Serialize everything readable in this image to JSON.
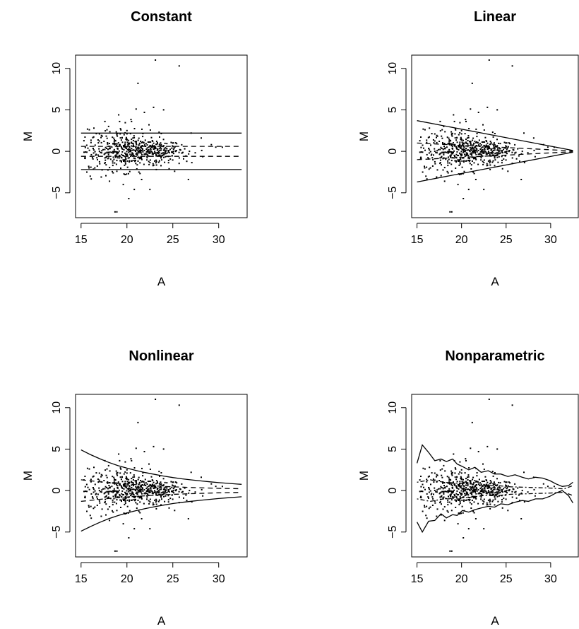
{
  "chart_data": [
    {
      "type": "scatter",
      "title": "Constant",
      "xlabel": "A",
      "ylabel": "M",
      "xlim": [
        14.4,
        33.1
      ],
      "ylim": [
        -8.0,
        11.6
      ],
      "xticks": [
        "15",
        "20",
        "25",
        "30"
      ],
      "yticks": [
        "-5",
        "0",
        "5",
        "10"
      ],
      "series": [
        {
          "style": "points",
          "points_from": "scatter_points"
        },
        {
          "style": "solid",
          "x": [
            15.0,
            32.5
          ],
          "y": [
            2.2,
            2.2
          ]
        },
        {
          "style": "solid",
          "x": [
            15.0,
            32.5
          ],
          "y": [
            -2.2,
            -2.2
          ]
        },
        {
          "style": "dashed",
          "x": [
            15.0,
            32.5
          ],
          "y": [
            0.6,
            0.6
          ]
        },
        {
          "style": "dashed",
          "x": [
            15.0,
            32.5
          ],
          "y": [
            -0.6,
            -0.6
          ]
        }
      ]
    },
    {
      "type": "scatter",
      "title": "Linear",
      "xlabel": "A",
      "ylabel": "M",
      "xlim": [
        14.4,
        33.1
      ],
      "ylim": [
        -8.0,
        11.6
      ],
      "xticks": [
        "15",
        "20",
        "25",
        "30"
      ],
      "yticks": [
        "-5",
        "0",
        "5",
        "10"
      ],
      "series": [
        {
          "style": "points",
          "points_from": "scatter_points"
        },
        {
          "style": "solid",
          "x": [
            15.0,
            32.5
          ],
          "y": [
            3.7,
            0.1
          ]
        },
        {
          "style": "solid",
          "x": [
            15.0,
            32.5
          ],
          "y": [
            -3.7,
            -0.1
          ]
        },
        {
          "style": "dashed",
          "x": [
            15.0,
            32.5
          ],
          "y": [
            1.0,
            0.05
          ]
        },
        {
          "style": "dashed",
          "x": [
            15.0,
            32.5
          ],
          "y": [
            -1.0,
            -0.05
          ]
        }
      ]
    },
    {
      "type": "scatter",
      "title": "Nonlinear",
      "xlabel": "A",
      "ylabel": "M",
      "xlim": [
        14.4,
        33.1
      ],
      "ylim": [
        -8.0,
        11.6
      ],
      "xticks": [
        "15",
        "20",
        "25",
        "30"
      ],
      "yticks": [
        "-5",
        "0",
        "5",
        "10"
      ],
      "series": [
        {
          "style": "points",
          "points_from": "scatter_points"
        },
        {
          "style": "solid",
          "x": [
            15,
            16,
            17,
            18,
            19,
            20,
            21,
            22,
            23,
            24,
            25,
            26,
            27,
            28,
            29,
            30,
            31,
            32,
            32.5
          ],
          "y": [
            4.9,
            4.35,
            3.85,
            3.4,
            3.02,
            2.7,
            2.42,
            2.17,
            1.95,
            1.75,
            1.57,
            1.42,
            1.29,
            1.17,
            1.06,
            0.96,
            0.87,
            0.79,
            0.75
          ]
        },
        {
          "style": "solid",
          "x": [
            15,
            16,
            17,
            18,
            19,
            20,
            21,
            22,
            23,
            24,
            25,
            26,
            27,
            28,
            29,
            30,
            31,
            32,
            32.5
          ],
          "y": [
            -4.9,
            -4.35,
            -3.85,
            -3.4,
            -3.02,
            -2.7,
            -2.42,
            -2.17,
            -1.95,
            -1.75,
            -1.57,
            -1.42,
            -1.29,
            -1.17,
            -1.06,
            -0.96,
            -0.87,
            -0.79,
            -0.75
          ]
        },
        {
          "style": "dashed",
          "x": [
            15,
            18,
            21,
            24,
            27,
            30,
            32.5
          ],
          "y": [
            1.3,
            0.95,
            0.7,
            0.5,
            0.37,
            0.27,
            0.22
          ]
        },
        {
          "style": "dashed",
          "x": [
            15,
            18,
            21,
            24,
            27,
            30,
            32.5
          ],
          "y": [
            -1.3,
            -0.95,
            -0.7,
            -0.5,
            -0.37,
            -0.27,
            -0.22
          ]
        }
      ]
    },
    {
      "type": "scatter",
      "title": "Nonparametric",
      "xlabel": "A",
      "ylabel": "M",
      "xlim": [
        14.4,
        33.1
      ],
      "ylim": [
        -8.0,
        11.6
      ],
      "xticks": [
        "15",
        "20",
        "25",
        "30"
      ],
      "yticks": [
        "-5",
        "0",
        "5",
        "10"
      ],
      "series": [
        {
          "style": "points",
          "points_from": "scatter_points"
        },
        {
          "style": "solid",
          "x": [
            15.0,
            15.6,
            16.3,
            17.0,
            17.7,
            18.3,
            19.0,
            19.5,
            20.1,
            20.8,
            21.5,
            22.2,
            23.0,
            23.7,
            24.4,
            25.2,
            26.0,
            26.8,
            27.5,
            28.3,
            29.1,
            29.9,
            30.6,
            31.3,
            32.0,
            32.5
          ],
          "y": [
            3.3,
            5.5,
            4.6,
            3.6,
            3.8,
            3.5,
            3.8,
            3.2,
            2.9,
            2.5,
            2.8,
            2.2,
            2.4,
            2.0,
            2.0,
            1.7,
            1.9,
            1.6,
            1.4,
            1.6,
            1.5,
            1.2,
            0.8,
            0.5,
            0.6,
            1.0
          ]
        },
        {
          "style": "solid",
          "x": [
            15.0,
            15.6,
            16.3,
            17.0,
            17.7,
            18.3,
            19.0,
            19.5,
            20.1,
            20.8,
            21.5,
            22.2,
            23.0,
            23.7,
            24.4,
            25.2,
            26.0,
            26.8,
            27.5,
            28.3,
            29.1,
            29.9,
            30.6,
            31.3,
            32.0,
            32.5
          ],
          "y": [
            -3.8,
            -5.0,
            -3.7,
            -3.6,
            -2.8,
            -3.3,
            -2.9,
            -3.0,
            -2.4,
            -2.6,
            -2.3,
            -2.1,
            -1.9,
            -2.0,
            -1.6,
            -1.7,
            -1.4,
            -1.2,
            -1.3,
            -1.0,
            -1.0,
            -0.7,
            -0.3,
            0.0,
            -0.6,
            -1.5
          ]
        },
        {
          "style": "dotdash",
          "x": [
            15.0,
            16.5,
            18.0,
            19.5,
            21.0,
            22.5,
            24.0,
            25.5,
            27.0,
            28.5,
            30.0,
            31.5,
            32.5
          ],
          "y": [
            1.0,
            1.3,
            1.0,
            0.9,
            0.8,
            0.6,
            0.6,
            0.45,
            0.4,
            0.35,
            0.3,
            0.2,
            0.6
          ]
        },
        {
          "style": "dotdash",
          "x": [
            15.0,
            16.5,
            18.0,
            19.5,
            21.0,
            22.5,
            24.0,
            25.5,
            27.0,
            28.5,
            30.0,
            31.5,
            32.5
          ],
          "y": [
            -1.0,
            -1.3,
            -1.0,
            -0.9,
            -0.8,
            -0.6,
            -0.6,
            -0.45,
            -0.4,
            -0.35,
            -0.3,
            -0.2,
            -0.6
          ]
        }
      ]
    }
  ],
  "scatter_points": [
    [
      23.1,
      11.0
    ],
    [
      25.7,
      10.3
    ],
    [
      21.2,
      8.2
    ],
    [
      18.7,
      -7.3
    ],
    [
      18.9,
      -7.3
    ],
    [
      20.2,
      -5.7
    ],
    [
      22.9,
      5.3
    ],
    [
      24.0,
      5.0
    ],
    [
      21.0,
      5.1
    ],
    [
      19.1,
      4.4
    ],
    [
      17.6,
      3.6
    ],
    [
      20.5,
      3.6
    ],
    [
      18.0,
      3.0
    ],
    [
      16.4,
      2.8
    ],
    [
      15.9,
      2.6
    ],
    [
      22.4,
      3.2
    ],
    [
      19.6,
      -4.0
    ],
    [
      18.1,
      -3.6
    ],
    [
      20.8,
      -4.6
    ],
    [
      22.5,
      -4.6
    ],
    [
      26.7,
      -3.4
    ],
    [
      17.2,
      -3.1
    ],
    [
      16.0,
      -3.0
    ],
    [
      21.6,
      -3.4
    ],
    [
      24.6,
      -2.1
    ],
    [
      25.2,
      -2.4
    ],
    [
      28.1,
      1.6
    ],
    [
      27.0,
      2.2
    ],
    [
      29.2,
      0.8
    ],
    [
      30.4,
      0.5
    ],
    [
      19.2,
      3.6
    ],
    [
      21.9,
      4.7
    ],
    [
      20.0,
      2.5
    ],
    [
      23.5,
      2.3
    ],
    [
      17.0,
      2.1
    ],
    [
      18.5,
      -2.6
    ],
    [
      19.8,
      -2.8
    ],
    [
      21.3,
      -2.5
    ],
    [
      23.2,
      -2.2
    ],
    [
      16.5,
      -2.0
    ]
  ],
  "scatter_cloud": {
    "count": 560,
    "x_mean": 21.0,
    "x_sd": 2.7,
    "x_min": 15.3,
    "x_max": 31.5,
    "y_sd_at_15": 1.4,
    "y_sd_at_31": 0.25
  }
}
